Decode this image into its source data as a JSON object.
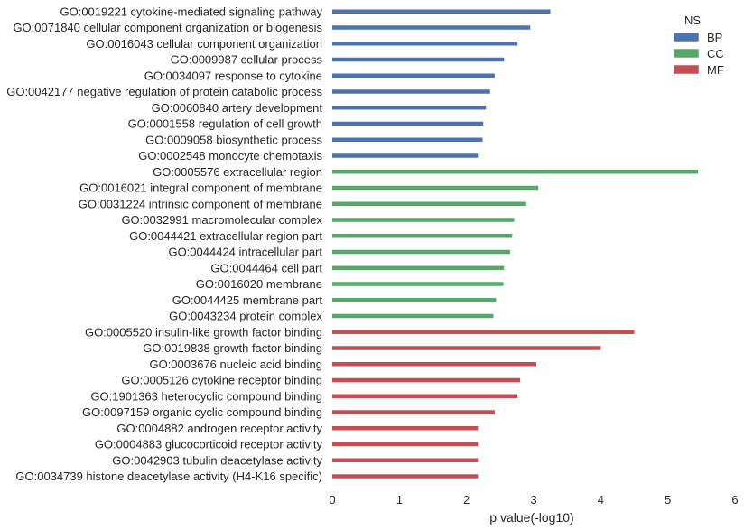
{
  "chart_data": {
    "type": "bar",
    "orientation": "horizontal",
    "xlabel": "p value(-log10)",
    "xlim": [
      0,
      6
    ],
    "xticks": [
      0,
      1,
      2,
      3,
      4,
      5,
      6
    ],
    "grid": false,
    "legend": {
      "title": "NS",
      "placement": "top-right",
      "entries": [
        {
          "name": "BP",
          "color": "#4c72b0"
        },
        {
          "name": "CC",
          "color": "#55a868"
        },
        {
          "name": "MF",
          "color": "#c44e52"
        }
      ]
    },
    "bars": [
      {
        "label": "GO:0019221 cytokine-mediated signaling pathway",
        "value": 3.25,
        "ns": "BP"
      },
      {
        "label": "GO:0071840 cellular component organization or biogenesis",
        "value": 2.95,
        "ns": "BP"
      },
      {
        "label": "GO:0016043 cellular component organization",
        "value": 2.76,
        "ns": "BP"
      },
      {
        "label": "GO:0009987 cellular process",
        "value": 2.56,
        "ns": "BP"
      },
      {
        "label": "GO:0034097 response to cytokine",
        "value": 2.42,
        "ns": "BP"
      },
      {
        "label": "GO:0042177 negative regulation of protein catabolic process",
        "value": 2.35,
        "ns": "BP"
      },
      {
        "label": "GO:0060840 artery development",
        "value": 2.29,
        "ns": "BP"
      },
      {
        "label": "GO:0001558 regulation of cell growth",
        "value": 2.25,
        "ns": "BP"
      },
      {
        "label": "GO:0009058 biosynthetic process",
        "value": 2.24,
        "ns": "BP"
      },
      {
        "label": "GO:0002548 monocyte chemotaxis",
        "value": 2.17,
        "ns": "BP"
      },
      {
        "label": "GO:0005576 extracellular region",
        "value": 5.45,
        "ns": "CC"
      },
      {
        "label": "GO:0016021 integral component of membrane",
        "value": 3.07,
        "ns": "CC"
      },
      {
        "label": "GO:0031224 intrinsic component of membrane",
        "value": 2.89,
        "ns": "CC"
      },
      {
        "label": "GO:0032991 macromolecular complex",
        "value": 2.71,
        "ns": "CC"
      },
      {
        "label": "GO:0044421 extracellular region part",
        "value": 2.68,
        "ns": "CC"
      },
      {
        "label": "GO:0044424 intracellular part",
        "value": 2.65,
        "ns": "CC"
      },
      {
        "label": "GO:0044464 cell part",
        "value": 2.56,
        "ns": "CC"
      },
      {
        "label": "GO:0016020 membrane",
        "value": 2.55,
        "ns": "CC"
      },
      {
        "label": "GO:0044425 membrane part",
        "value": 2.44,
        "ns": "CC"
      },
      {
        "label": "GO:0043234 protein complex",
        "value": 2.4,
        "ns": "CC"
      },
      {
        "label": "GO:0005520 insulin-like growth factor binding",
        "value": 4.5,
        "ns": "MF"
      },
      {
        "label": "GO:0019838 growth factor binding",
        "value": 4.0,
        "ns": "MF"
      },
      {
        "label": "GO:0003676 nucleic acid binding",
        "value": 3.04,
        "ns": "MF"
      },
      {
        "label": "GO:0005126 cytokine receptor binding",
        "value": 2.8,
        "ns": "MF"
      },
      {
        "label": "GO:1901363 heterocyclic compound binding",
        "value": 2.76,
        "ns": "MF"
      },
      {
        "label": "GO:0097159 organic cyclic compound binding",
        "value": 2.42,
        "ns": "MF"
      },
      {
        "label": "GO:0004882 androgen receptor activity",
        "value": 2.17,
        "ns": "MF"
      },
      {
        "label": "GO:0004883 glucocorticoid receptor activity",
        "value": 2.17,
        "ns": "MF"
      },
      {
        "label": "GO:0042903 tubulin deacetylase activity",
        "value": 2.17,
        "ns": "MF"
      },
      {
        "label": "GO:0034739 histone deacetylase activity (H4-K16 specific)",
        "value": 2.17,
        "ns": "MF"
      }
    ]
  }
}
